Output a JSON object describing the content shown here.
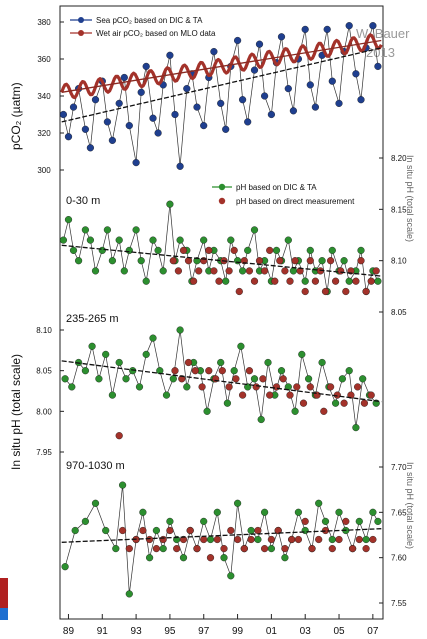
{
  "watermark": {
    "author": "W. Bauer",
    "year": "2013"
  },
  "colors": {
    "blue_series": "#1f3f8f",
    "red_series": "#a3322a",
    "green_series": "#2c8f2f",
    "trend_blue": "#1a1a1a",
    "trend_red": "#8a2a22",
    "trend_green": "#111111",
    "axis": "#222222",
    "corner_accent_red": "#b02020",
    "corner_accent_blue": "#1f6fd0"
  },
  "legend_top": {
    "blue": "Sea pCO₂ based on DIC & TA",
    "red": "Wet air pCO₂ based on MLO data"
  },
  "legend_mid": {
    "green": "pH based on DIC & TA",
    "red": "pH based on direct measurement"
  },
  "axes": {
    "left_top_label": "pCO₂ (µatm)",
    "left_mid_label": "In situ pH (total scale)",
    "right_upper_label": "In situ pH (total scale)",
    "right_lower_label": "In situ pH (total scale)",
    "depth_0_30": "0-30 m",
    "depth_235_265": "235-265 m",
    "depth_970_1030": "970-1030 m"
  },
  "chart_data": [
    {
      "type": "scatter",
      "panel": "pCO2",
      "ylabel": "pCO₂ (µatm)",
      "ylim": [
        300,
        380
      ],
      "yticks": [
        "380",
        "360",
        "340",
        "320",
        "300"
      ],
      "xlim": [
        1988.5,
        2007.6
      ],
      "series": [
        {
          "name": "Sea pCO₂ based on DIC & TA",
          "style": "points+line",
          "x": [
            1988.7,
            1989.0,
            1989.3,
            1989.6,
            1990.0,
            1990.3,
            1990.6,
            1991.0,
            1991.3,
            1991.6,
            1992.0,
            1992.3,
            1992.6,
            1993.0,
            1993.3,
            1993.6,
            1994.0,
            1994.3,
            1994.6,
            1995.0,
            1995.3,
            1995.6,
            1996.0,
            1996.3,
            1996.6,
            1997.0,
            1997.3,
            1997.6,
            1998.0,
            1998.3,
            1998.6,
            1999.0,
            1999.3,
            1999.6,
            2000.0,
            2000.3,
            2000.6,
            2001.0,
            2001.3,
            2001.6,
            2002.0,
            2002.3,
            2002.6,
            2003.0,
            2003.3,
            2003.6,
            2004.0,
            2004.3,
            2004.6,
            2005.0,
            2005.3,
            2005.6,
            2006.0,
            2006.3,
            2006.6,
            2007.0,
            2007.3
          ],
          "y": [
            330,
            318,
            334,
            344,
            322,
            312,
            338,
            348,
            326,
            316,
            336,
            350,
            324,
            304,
            342,
            356,
            328,
            320,
            346,
            362,
            330,
            302,
            344,
            352,
            334,
            324,
            350,
            364,
            336,
            322,
            356,
            370,
            338,
            326,
            354,
            368,
            340,
            330,
            358,
            372,
            344,
            332,
            360,
            376,
            346,
            334,
            362,
            376,
            348,
            336,
            364,
            378,
            352,
            338,
            366,
            378,
            356
          ]
        },
        {
          "name": "Wet air pCO₂ based on MLO data",
          "style": "seasonal-line",
          "x_start": 1988.6,
          "x_end": 2007.5,
          "baseline_start": 342,
          "baseline_end": 370,
          "seasonal_amplitude": 4
        }
      ],
      "trends": [
        {
          "series": "Sea pCO₂ based on DIC & TA",
          "x": [
            1988.6,
            2007.5
          ],
          "y": [
            326,
            366
          ]
        },
        {
          "series": "Wet air pCO₂ based on MLO data",
          "x": [
            1988.6,
            2007.5
          ],
          "y": [
            342,
            370
          ]
        }
      ]
    },
    {
      "type": "scatter",
      "panel": "pH 0-30 m",
      "label": "0-30 m",
      "ylabel": "In situ pH (total scale)",
      "ylim": [
        8.05,
        8.2
      ],
      "yticks": [
        "8.20",
        "8.15",
        "8.10",
        "8.05"
      ],
      "xlim": [
        1988.5,
        2007.6
      ],
      "series": [
        {
          "name": "pH based on DIC & TA",
          "style": "points+line",
          "x": [
            1988.7,
            1989.0,
            1989.3,
            1989.6,
            1990.0,
            1990.3,
            1990.6,
            1991.0,
            1991.3,
            1991.6,
            1992.0,
            1992.3,
            1992.6,
            1993.0,
            1993.3,
            1993.6,
            1994.0,
            1994.3,
            1994.6,
            1995.0,
            1995.3,
            1995.6,
            1996.0,
            1996.3,
            1996.6,
            1997.0,
            1997.3,
            1997.6,
            1998.0,
            1998.3,
            1998.6,
            1999.0,
            1999.3,
            1999.6,
            2000.0,
            2000.3,
            2000.6,
            2001.0,
            2001.3,
            2001.6,
            2002.0,
            2002.3,
            2002.6,
            2003.0,
            2003.3,
            2003.6,
            2004.0,
            2004.3,
            2004.6,
            2005.0,
            2005.3,
            2005.6,
            2006.0,
            2006.3,
            2006.6,
            2007.0,
            2007.3
          ],
          "y": [
            8.12,
            8.14,
            8.11,
            8.1,
            8.13,
            8.12,
            8.09,
            8.11,
            8.13,
            8.1,
            8.12,
            8.09,
            8.11,
            8.13,
            8.1,
            8.08,
            8.12,
            8.11,
            8.09,
            8.155,
            8.1,
            8.12,
            8.11,
            8.08,
            8.1,
            8.12,
            8.09,
            8.11,
            8.1,
            8.08,
            8.12,
            8.1,
            8.09,
            8.11,
            8.13,
            8.09,
            8.1,
            8.08,
            8.11,
            8.1,
            8.12,
            8.09,
            8.1,
            8.08,
            8.11,
            8.09,
            8.1,
            8.07,
            8.11,
            8.09,
            8.1,
            8.08,
            8.09,
            8.11,
            8.07,
            8.09,
            8.08
          ]
        },
        {
          "name": "pH based on direct measurement",
          "style": "points",
          "x": [
            1995.2,
            1995.5,
            1995.8,
            1996.1,
            1996.4,
            1996.7,
            1997.0,
            1997.3,
            1997.6,
            1997.9,
            1998.2,
            1998.5,
            1998.8,
            1999.1,
            1999.4,
            1999.7,
            2000.0,
            2000.3,
            2000.6,
            2000.9,
            2001.2,
            2001.5,
            2001.8,
            2002.1,
            2002.4,
            2002.7,
            2003.0,
            2003.3,
            2003.6,
            2003.9,
            2004.2,
            2004.5,
            2004.8,
            2005.1,
            2005.4,
            2005.7,
            2006.0,
            2006.3,
            2006.6,
            2006.9,
            2007.2
          ],
          "y": [
            8.1,
            8.09,
            8.11,
            8.1,
            8.08,
            8.09,
            8.1,
            8.11,
            8.09,
            8.08,
            8.1,
            8.09,
            8.11,
            8.07,
            8.1,
            8.09,
            8.08,
            8.1,
            8.09,
            8.11,
            8.08,
            8.1,
            8.09,
            8.08,
            8.1,
            8.09,
            8.07,
            8.1,
            8.08,
            8.09,
            8.07,
            8.1,
            8.08,
            8.09,
            8.07,
            8.09,
            8.08,
            8.1,
            8.07,
            8.08,
            8.09
          ]
        }
      ],
      "trends": [
        {
          "series": "pH based on DIC & TA",
          "x": [
            1988.6,
            2007.5
          ],
          "y": [
            8.115,
            8.085
          ]
        }
      ]
    },
    {
      "type": "scatter",
      "panel": "pH 235-265 m",
      "label": "235-265 m",
      "ylabel": "In situ pH (total scale)",
      "ylim": [
        7.95,
        8.1
      ],
      "yticks": [
        "8.10",
        "8.05",
        "8.00",
        "7.95"
      ],
      "xlim": [
        1988.5,
        2007.6
      ],
      "series": [
        {
          "name": "pH based on DIC & TA",
          "style": "points+line",
          "x": [
            1988.8,
            1989.2,
            1989.6,
            1990.0,
            1990.4,
            1990.8,
            1991.2,
            1991.6,
            1992.0,
            1992.4,
            1992.8,
            1993.2,
            1993.6,
            1994.0,
            1994.4,
            1994.8,
            1995.2,
            1995.6,
            1996.0,
            1996.4,
            1996.8,
            1997.2,
            1997.6,
            1998.0,
            1998.4,
            1998.8,
            1999.2,
            1999.6,
            2000.0,
            2000.4,
            2000.8,
            2001.2,
            2001.6,
            2002.0,
            2002.4,
            2002.8,
            2003.2,
            2003.6,
            2004.0,
            2004.4,
            2004.8,
            2005.2,
            2005.6,
            2006.0,
            2006.4,
            2006.8,
            2007.2
          ],
          "y": [
            8.04,
            8.03,
            8.06,
            8.05,
            8.08,
            8.04,
            8.07,
            8.02,
            8.06,
            8.04,
            8.05,
            8.03,
            8.07,
            8.09,
            8.05,
            8.02,
            8.04,
            8.1,
            8.03,
            8.06,
            8.05,
            8.0,
            8.04,
            8.06,
            8.01,
            8.05,
            8.08,
            8.03,
            8.04,
            7.99,
            8.06,
            8.02,
            8.05,
            8.03,
            8.0,
            8.07,
            8.04,
            8.02,
            8.06,
            8.03,
            8.01,
            8.04,
            8.05,
            7.98,
            8.04,
            8.02,
            8.01
          ]
        },
        {
          "name": "pH based on direct measurement",
          "style": "points",
          "x": [
            1992.0,
            1995.3,
            1995.7,
            1996.1,
            1996.5,
            1996.9,
            1997.3,
            1997.7,
            1998.1,
            1998.5,
            1998.9,
            1999.3,
            1999.7,
            2000.1,
            2000.5,
            2000.9,
            2001.3,
            2001.7,
            2002.1,
            2002.5,
            2002.9,
            2003.3,
            2003.7,
            2004.1,
            2004.5,
            2004.9,
            2005.3,
            2005.7,
            2006.1,
            2006.5,
            2006.9
          ],
          "y": [
            7.97,
            8.05,
            8.04,
            8.06,
            8.05,
            8.03,
            8.05,
            8.04,
            8.05,
            8.03,
            8.04,
            8.02,
            8.05,
            8.03,
            8.04,
            8.02,
            8.03,
            8.04,
            8.02,
            8.03,
            8.01,
            8.03,
            8.02,
            8.0,
            8.03,
            8.02,
            8.01,
            8.02,
            8.03,
            8.01,
            8.02
          ]
        }
      ],
      "trends": [
        {
          "series": "pH based on DIC & TA",
          "x": [
            1988.6,
            2007.5
          ],
          "y": [
            8.062,
            8.012
          ]
        }
      ]
    },
    {
      "type": "scatter",
      "panel": "pH 970-1030 m",
      "label": "970-1030 m",
      "ylabel": "In situ pH (total scale)",
      "ylim": [
        7.55,
        7.7
      ],
      "yticks": [
        "7.70",
        "7.65",
        "7.60",
        "7.55"
      ],
      "xlim": [
        1988.5,
        2007.6
      ],
      "xticks": [
        "89",
        "91",
        "93",
        "95",
        "97",
        "99",
        "01",
        "03",
        "05",
        "07"
      ],
      "series": [
        {
          "name": "pH based on DIC & TA",
          "style": "points+line",
          "x": [
            1988.8,
            1989.4,
            1990.0,
            1990.6,
            1991.2,
            1991.8,
            1992.2,
            1992.6,
            1993.0,
            1993.4,
            1993.8,
            1994.2,
            1994.6,
            1995.0,
            1995.4,
            1995.8,
            1996.2,
            1996.6,
            1997.0,
            1997.4,
            1997.8,
            1998.2,
            1998.6,
            1999.0,
            1999.4,
            1999.8,
            2000.2,
            2000.6,
            2001.0,
            2001.4,
            2001.8,
            2002.2,
            2002.6,
            2003.0,
            2003.4,
            2003.8,
            2004.2,
            2004.6,
            2005.0,
            2005.4,
            2005.8,
            2006.2,
            2006.6,
            2007.0,
            2007.3
          ],
          "y": [
            7.59,
            7.63,
            7.64,
            7.66,
            7.63,
            7.61,
            7.68,
            7.56,
            7.62,
            7.65,
            7.6,
            7.63,
            7.61,
            7.64,
            7.62,
            7.6,
            7.63,
            7.61,
            7.64,
            7.62,
            7.65,
            7.6,
            7.58,
            7.66,
            7.61,
            7.63,
            7.62,
            7.65,
            7.61,
            7.63,
            7.6,
            7.62,
            7.65,
            7.63,
            7.61,
            7.66,
            7.64,
            7.62,
            7.65,
            7.63,
            7.61,
            7.64,
            7.62,
            7.65,
            7.64
          ]
        },
        {
          "name": "pH based on direct measurement",
          "style": "points",
          "x": [
            1992.2,
            1992.6,
            1993.0,
            1993.4,
            1993.8,
            1994.2,
            1994.6,
            1995.0,
            1995.4,
            1995.8,
            1996.2,
            1996.6,
            1997.0,
            1997.4,
            1997.8,
            1998.2,
            1998.6,
            1999.0,
            1999.4,
            1999.8,
            2000.2,
            2000.6,
            2001.0,
            2001.4,
            2001.8,
            2002.2,
            2002.6,
            2003.0,
            2003.4,
            2003.8,
            2004.2,
            2004.6,
            2005.0,
            2005.4,
            2005.8,
            2006.2,
            2006.6,
            2007.0
          ],
          "y": [
            7.63,
            7.61,
            7.62,
            7.63,
            7.62,
            7.61,
            7.62,
            7.63,
            7.61,
            7.62,
            7.63,
            7.61,
            7.62,
            7.6,
            7.62,
            7.61,
            7.63,
            7.62,
            7.61,
            7.62,
            7.63,
            7.61,
            7.62,
            7.63,
            7.61,
            7.62,
            7.62,
            7.64,
            7.61,
            7.62,
            7.63,
            7.61,
            7.62,
            7.64,
            7.61,
            7.62,
            7.61,
            7.62
          ]
        }
      ],
      "trends": [
        {
          "series": "pH based on DIC & TA",
          "x": [
            1988.6,
            2007.5
          ],
          "y": [
            7.617,
            7.632
          ]
        }
      ]
    }
  ]
}
